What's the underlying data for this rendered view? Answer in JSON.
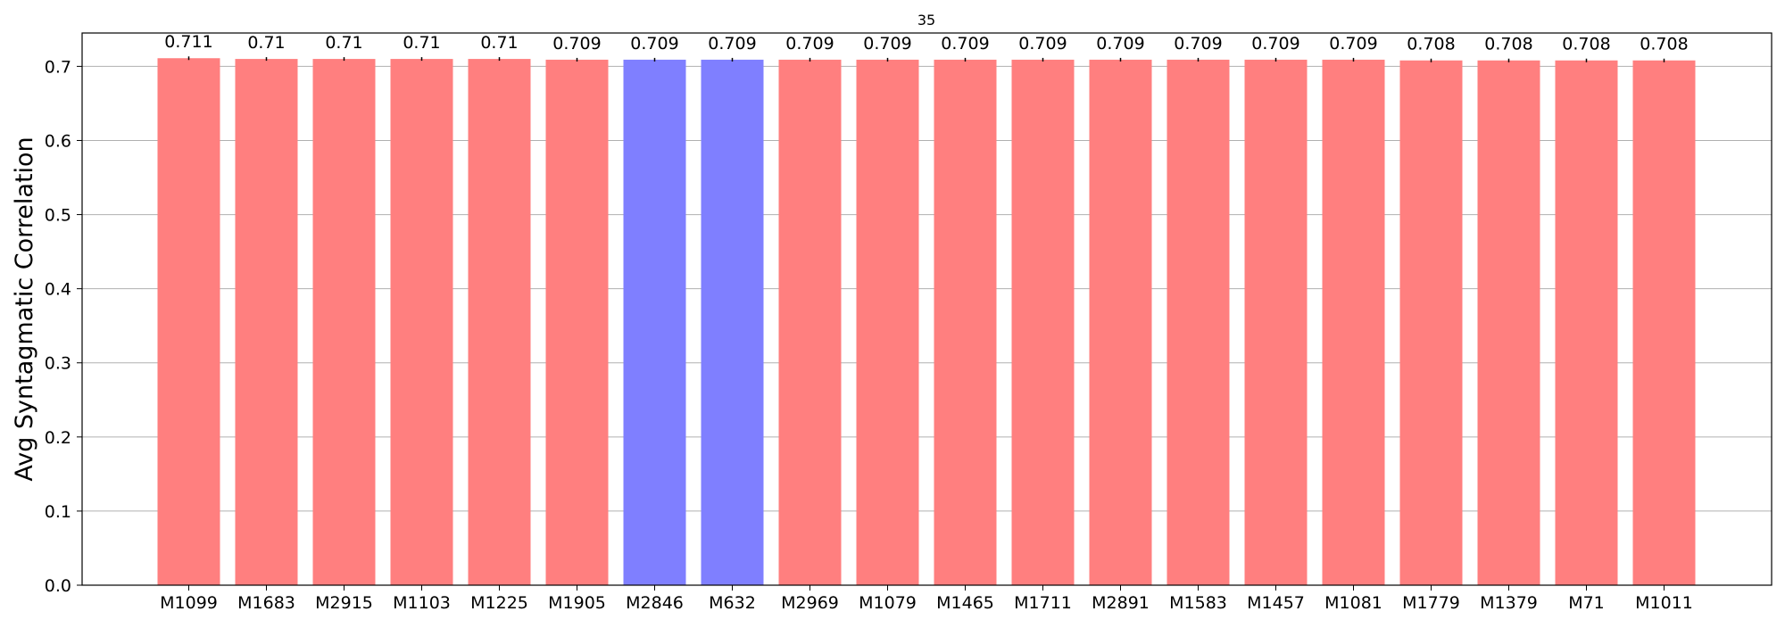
{
  "chart_data": {
    "type": "bar",
    "title": "35",
    "xlabel": "",
    "ylabel": "Avg Syntagmatic Correlation",
    "ylim": [
      0,
      0.745
    ],
    "yticks": [
      "0.0",
      "0.1",
      "0.2",
      "0.3",
      "0.4",
      "0.5",
      "0.6",
      "0.7"
    ],
    "grid": true,
    "categories": [
      "M1099",
      "M1683",
      "M2915",
      "M1103",
      "M1225",
      "M1905",
      "M2846",
      "M632",
      "M2969",
      "M1079",
      "M1465",
      "M1711",
      "M2891",
      "M1583",
      "M1457",
      "M1081",
      "M1779",
      "M1379",
      "M71",
      "M1011"
    ],
    "values": [
      0.711,
      0.71,
      0.71,
      0.71,
      0.71,
      0.709,
      0.709,
      0.709,
      0.709,
      0.709,
      0.709,
      0.709,
      0.709,
      0.709,
      0.709,
      0.709,
      0.708,
      0.708,
      0.708,
      0.708
    ],
    "labels": [
      "0.711",
      "0.71",
      "0.71",
      "0.71",
      "0.71",
      "0.709",
      "0.709",
      "0.709",
      "0.709",
      "0.709",
      "0.709",
      "0.709",
      "0.709",
      "0.709",
      "0.709",
      "0.709",
      "0.708",
      "0.708",
      "0.708",
      "0.708"
    ],
    "highlighted": [
      "M2846",
      "M632"
    ],
    "colors": {
      "default_bar": "#ff7f7f",
      "highlight_bar": "#7f7fff",
      "grid": "#b0b0b0",
      "axis": "#000000"
    }
  }
}
